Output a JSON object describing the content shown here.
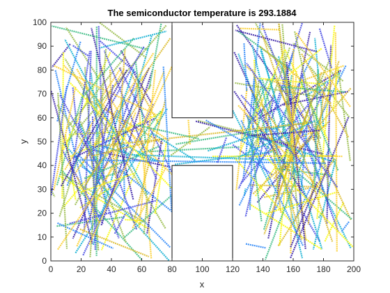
{
  "chart_data": {
    "type": "line",
    "title": "The semiconductor temperature is 293.1884",
    "xlabel": "x",
    "ylabel": "y",
    "xlim": [
      0,
      200
    ],
    "ylim": [
      0,
      100
    ],
    "xticks": [
      "0",
      "20",
      "40",
      "60",
      "80",
      "100",
      "120",
      "140",
      "160",
      "180",
      "200"
    ],
    "yticks": [
      "0",
      "10",
      "20",
      "30",
      "40",
      "50",
      "60",
      "70",
      "80",
      "90",
      "100"
    ],
    "grid": false,
    "legend": "none",
    "obstacles": [
      {
        "x": [
          80,
          120
        ],
        "y": [
          60,
          100
        ]
      },
      {
        "x": [
          80,
          120
        ],
        "y": [
          0,
          40
        ]
      }
    ],
    "trajectory_colormap": [
      "#3e26a8",
      "#4a4fe3",
      "#2e87f7",
      "#16b1d4",
      "#3ebc85",
      "#99bc4b",
      "#dcba2a",
      "#fcd030",
      "#f9fb0e"
    ],
    "trajectory_count": 260,
    "line_style": "dotted"
  }
}
